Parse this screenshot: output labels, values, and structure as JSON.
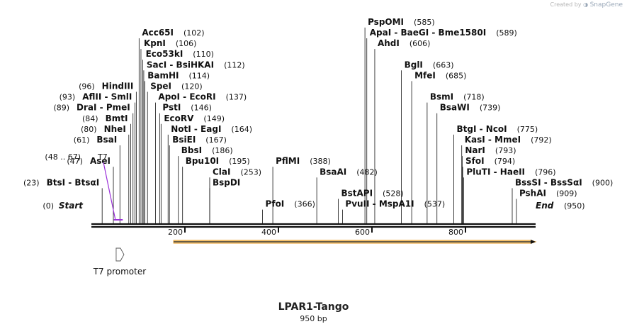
{
  "credit": {
    "prefix": "Created by",
    "brand": "SnapGene"
  },
  "title": "LPAR1-Tango",
  "subtitle": "950 bp",
  "sequence_length": 950,
  "colors": {
    "line": "#111111",
    "primer": "#9b30d9",
    "feature_fill": "#f7d9a0",
    "feature_stroke": "#e89a20"
  },
  "ruler": [
    {
      "label": "200",
      "bp": 200
    },
    {
      "label": "400",
      "bp": 400
    },
    {
      "label": "600",
      "bp": 600
    },
    {
      "label": "800",
      "bp": 800
    }
  ],
  "enzymes": [
    {
      "name": "Acc65I",
      "pos": "(102)",
      "bp": 102,
      "side": "right",
      "row": 0
    },
    {
      "name": "KpnI",
      "pos": "(106)",
      "bp": 106,
      "side": "right",
      "row": 1
    },
    {
      "name": "Eco53kI",
      "pos": "(110)",
      "bp": 110,
      "side": "right",
      "row": 2
    },
    {
      "name": "SacI  -  BsiHKAI",
      "pos": "(112)",
      "bp": 112,
      "side": "right",
      "row": 3
    },
    {
      "name": "BamHI",
      "pos": "(114)",
      "bp": 114,
      "side": "right",
      "row": 4
    },
    {
      "name": "SpeI",
      "pos": "(120)",
      "bp": 120,
      "side": "right",
      "row": 5
    },
    {
      "name": "ApoI  -  EcoRI",
      "pos": "(137)",
      "bp": 137,
      "side": "right",
      "row": 6
    },
    {
      "name": "PstI",
      "pos": "(146)",
      "bp": 146,
      "side": "right",
      "row": 7
    },
    {
      "name": "EcoRV",
      "pos": "(149)",
      "bp": 149,
      "side": "right",
      "row": 8
    },
    {
      "name": "NotI  -  EagI",
      "pos": "(164)",
      "bp": 164,
      "side": "right",
      "row": 9
    },
    {
      "name": "BsiEI",
      "pos": "(167)",
      "bp": 167,
      "side": "right",
      "row": 10
    },
    {
      "name": "BbsI",
      "pos": "(186)",
      "bp": 186,
      "side": "right",
      "row": 11
    },
    {
      "name": "Bpu10I",
      "pos": "(195)",
      "bp": 195,
      "side": "right",
      "row": 12
    },
    {
      "name": "ClaI",
      "pos": "(253)",
      "bp": 253,
      "side": "right",
      "row": 13
    },
    {
      "name": "BspDI",
      "pos": "",
      "bp": 253,
      "side": "right",
      "row": 14
    },
    {
      "name": "PflMI",
      "pos": "(388)",
      "bp": 388,
      "side": "right",
      "row": 12
    },
    {
      "name": "PfoI",
      "pos": "(366)",
      "bp": 366,
      "side": "right",
      "row": 16
    },
    {
      "name": "BsaAI",
      "pos": "(482)",
      "bp": 482,
      "side": "right",
      "row": 13
    },
    {
      "name": "BstAPI",
      "pos": "(528)",
      "bp": 528,
      "side": "right",
      "row": 15
    },
    {
      "name": "PvuII  -  MspA1I",
      "pos": "(537)",
      "bp": 537,
      "side": "right",
      "row": 16
    },
    {
      "name": "PspOMI",
      "pos": "(585)",
      "bp": 585,
      "side": "right",
      "row": -1
    },
    {
      "name": "ApaI  -  BaeGI  -  Bme1580I",
      "pos": "(589)",
      "bp": 589,
      "side": "right",
      "row": 0
    },
    {
      "name": "AhdI",
      "pos": "(606)",
      "bp": 606,
      "side": "right",
      "row": 1
    },
    {
      "name": "BglI",
      "pos": "(663)",
      "bp": 663,
      "side": "right",
      "row": 3
    },
    {
      "name": "MfeI",
      "pos": "(685)",
      "bp": 685,
      "side": "right",
      "row": 4
    },
    {
      "name": "BsmI",
      "pos": "(718)",
      "bp": 718,
      "side": "right",
      "row": 6
    },
    {
      "name": "BsaWI",
      "pos": "(739)",
      "bp": 739,
      "side": "right",
      "row": 7
    },
    {
      "name": "BtgI  -  NcoI",
      "pos": "(775)",
      "bp": 775,
      "side": "right",
      "row": 9
    },
    {
      "name": "KasI  -  MmeI",
      "pos": "(792)",
      "bp": 792,
      "side": "right",
      "row": 10
    },
    {
      "name": "NarI",
      "pos": "(793)",
      "bp": 793,
      "side": "right",
      "row": 11
    },
    {
      "name": "SfoI",
      "pos": "(794)",
      "bp": 794,
      "side": "right",
      "row": 12
    },
    {
      "name": "PluTI  -  HaeII",
      "pos": "(796)",
      "bp": 796,
      "side": "right",
      "row": 13
    },
    {
      "name": "BssSI  -  BssSαI",
      "pos": "(900)",
      "bp": 900,
      "side": "right",
      "row": 14
    },
    {
      "name": "PshAI",
      "pos": "(909)",
      "bp": 909,
      "side": "right",
      "row": 15
    },
    {
      "name": "HindIII",
      "pos": "(96)",
      "bp": 96,
      "side": "left",
      "row": 5
    },
    {
      "name": "AflII  -  SmlI",
      "pos": "(93)",
      "bp": 93,
      "side": "left",
      "row": 6
    },
    {
      "name": "DraI  -  PmeI",
      "pos": "(89)",
      "bp": 89,
      "side": "left",
      "row": 7
    },
    {
      "name": "BmtI",
      "pos": "(84)",
      "bp": 84,
      "side": "left",
      "row": 8
    },
    {
      "name": "NheI",
      "pos": "(80)",
      "bp": 80,
      "side": "left",
      "row": 9
    },
    {
      "name": "BsaI",
      "pos": "(61)",
      "bp": 61,
      "side": "left",
      "row": 10
    },
    {
      "name": "AseI",
      "pos": "(47)",
      "bp": 47,
      "side": "left",
      "row": 12
    },
    {
      "name": "BtsI  -  BtsαI",
      "pos": "(23)",
      "bp": 23,
      "side": "left",
      "row": 14
    }
  ],
  "ends": [
    {
      "name": "Start",
      "pos": "(0)",
      "bp": 0,
      "side": "left"
    },
    {
      "name": "End",
      "pos": "(950)",
      "bp": 950,
      "side": "right"
    }
  ],
  "primer": {
    "name": "T7",
    "pos": "(48 .. 67)",
    "start": 48,
    "end": 67
  },
  "features": [
    {
      "name": "T7 promoter",
      "start": 48,
      "end": 67
    },
    {
      "name": "",
      "start": 176,
      "end": 950
    }
  ]
}
